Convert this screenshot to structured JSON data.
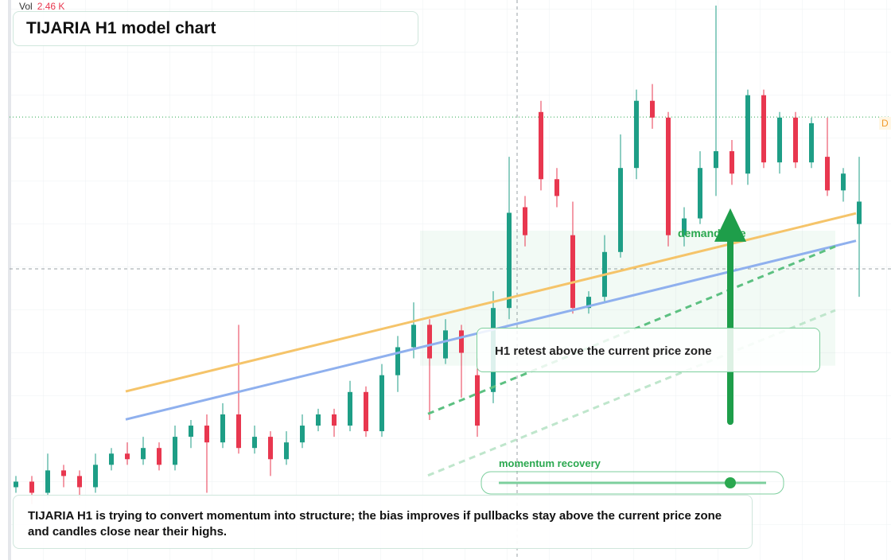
{
  "chart_data": {
    "type": "candlestick",
    "title": "TIJARIA H1 model chart",
    "volume_label": "Vol",
    "volume_value": "2.46 K",
    "annotations": [
      "H1 retest above the current price zone",
      "momentum recovery"
    ],
    "note": "TIJARIA H1 is trying to convert momentum into structure; the bias improves if pullbacks stay above the current price zone and candles close near their highs.",
    "up_color": "#1e9e86",
    "down_color": "#e8374f",
    "ylim": [
      0,
      100
    ],
    "xlim": [
      -1,
      55
    ],
    "open": [
      13,
      14,
      12,
      16,
      15,
      13,
      17,
      19,
      18,
      20,
      17,
      22,
      24,
      21,
      26,
      20,
      22,
      18,
      21,
      24,
      26,
      24,
      30,
      23,
      33,
      38,
      42,
      36,
      41,
      33,
      30,
      45,
      63,
      80,
      68,
      58,
      45,
      47,
      55,
      70,
      82,
      79,
      58,
      61,
      70,
      73,
      69,
      83,
      71,
      79,
      71,
      72,
      66,
      60
    ],
    "high": [
      15,
      15,
      19,
      17,
      16,
      19,
      20,
      21,
      22,
      21,
      24,
      25,
      26,
      28,
      42,
      24,
      23,
      23,
      26,
      27,
      27,
      32,
      31,
      35,
      40,
      46,
      43,
      43,
      42,
      36,
      48,
      72,
      65,
      82,
      70,
      64,
      48,
      58,
      76,
      84,
      85,
      80,
      63,
      73,
      99,
      75,
      84,
      84,
      80,
      80,
      79,
      79,
      70,
      72
    ],
    "low": [
      12,
      10,
      11,
      13,
      11,
      12,
      16,
      17,
      17,
      16,
      16,
      20,
      12,
      20,
      19,
      19,
      15,
      17,
      20,
      23,
      22,
      23,
      22,
      22,
      30,
      36,
      25,
      35,
      29,
      22,
      28,
      43,
      56,
      66,
      63,
      44,
      44,
      46,
      54,
      68,
      77,
      56,
      56,
      60,
      65,
      67,
      67,
      70,
      69,
      70,
      70,
      65,
      64,
      47
    ],
    "close": [
      14,
      12,
      16,
      15,
      13,
      17,
      19,
      18,
      20,
      17,
      22,
      24,
      21,
      26,
      20,
      22,
      18,
      21,
      24,
      26,
      24,
      30,
      23,
      33,
      38,
      42,
      36,
      41,
      37,
      24,
      45,
      62,
      58,
      68,
      65,
      45,
      47,
      55,
      70,
      82,
      79,
      58,
      61,
      70,
      73,
      69,
      83,
      71,
      79,
      71,
      78,
      66,
      69,
      64
    ],
    "trend_lines": [
      {
        "color": "#f5c46a",
        "x": [
          6.9,
          52.8
        ],
        "y": [
          30.1,
          61.9
        ],
        "dash": false
      },
      {
        "color": "#8fb0ee",
        "x": [
          6.9,
          52.8
        ],
        "y": [
          25.1,
          57.0
        ],
        "dash": false
      },
      {
        "color": "#5cc081",
        "x": [
          25.9,
          51.5
        ],
        "y": [
          26.1,
          56.0
        ],
        "dash": true
      },
      {
        "color": "#bfe6cc",
        "x": [
          25.9,
          51.5
        ],
        "y": [
          15.1,
          44.6
        ],
        "dash": true
      }
    ],
    "zone": {
      "label": "demand side",
      "x": [
        25.4,
        51.5
      ],
      "y": [
        34.7,
        58.8
      ],
      "color": "#2aa84f"
    },
    "arrow": {
      "x": 44.9,
      "from": 24.7,
      "to": 62.8,
      "color": "#1e9e4a"
    },
    "price_line": {
      "value": 79.1,
      "label": "D",
      "color": "#2aa84f"
    }
  }
}
